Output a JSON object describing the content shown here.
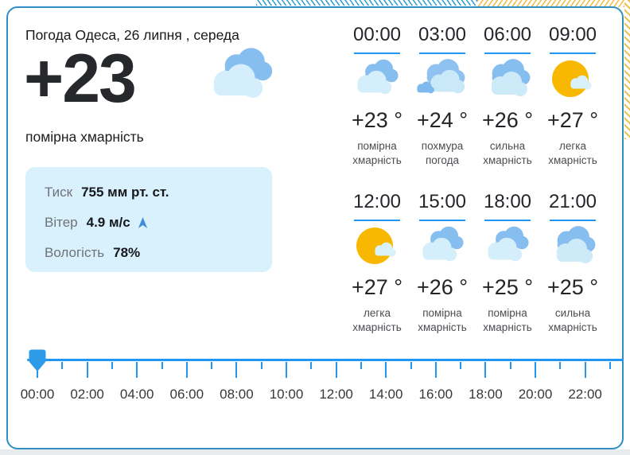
{
  "colors": {
    "accent_blue": "#2196F3",
    "card_border_blue": "#2f8fc6",
    "info_box_bg": "#D9F1FC",
    "cloud_blue": "#85BEEF",
    "cloud_light": "#D5EEFB",
    "sun_yellow": "#F8B801",
    "handle_blue": "#2E9BE8"
  },
  "header": {
    "title": "Погода Одеса, 26 липня , середа"
  },
  "current": {
    "temperature": "+23",
    "condition": "помірна хмарність",
    "icon": "clouds-moderate",
    "details": {
      "pressure_label": "Тиск",
      "pressure_value": "755 мм рт. ст.",
      "wind_label": "Вітер",
      "wind_value": "4.9 м/с",
      "wind_icon": "wind-direction-arrow",
      "humidity_label": "Вологість",
      "humidity_value": "78%"
    }
  },
  "hourly": [
    {
      "time": "00:00",
      "temp": "+23 °",
      "desc": "помірна хмарність",
      "icon": "clouds-moderate"
    },
    {
      "time": "03:00",
      "temp": "+24 °",
      "desc": "похмура погода",
      "icon": "overcast"
    },
    {
      "time": "06:00",
      "temp": "+26 °",
      "desc": "сильна хмарність",
      "icon": "clouds-heavy"
    },
    {
      "time": "09:00",
      "temp": "+27 °",
      "desc": "легка хмарність",
      "icon": "sun-cloud"
    },
    {
      "time": "12:00",
      "temp": "+27 °",
      "desc": "легка хмарність",
      "icon": "sun-cloud"
    },
    {
      "time": "15:00",
      "temp": "+26 °",
      "desc": "помірна хмарність",
      "icon": "clouds-moderate"
    },
    {
      "time": "18:00",
      "temp": "+25 °",
      "desc": "помірна хмарність",
      "icon": "clouds-moderate"
    },
    {
      "time": "21:00",
      "temp": "+25 °",
      "desc": "сильна хмарність",
      "icon": "clouds-heavy"
    }
  ],
  "timeline": {
    "hour_ticks": 24,
    "selected_time": "00:00",
    "labels": [
      "00:00",
      "02:00",
      "04:00",
      "06:00",
      "08:00",
      "10:00",
      "12:00",
      "14:00",
      "16:00",
      "18:00",
      "20:00",
      "22:00"
    ]
  }
}
